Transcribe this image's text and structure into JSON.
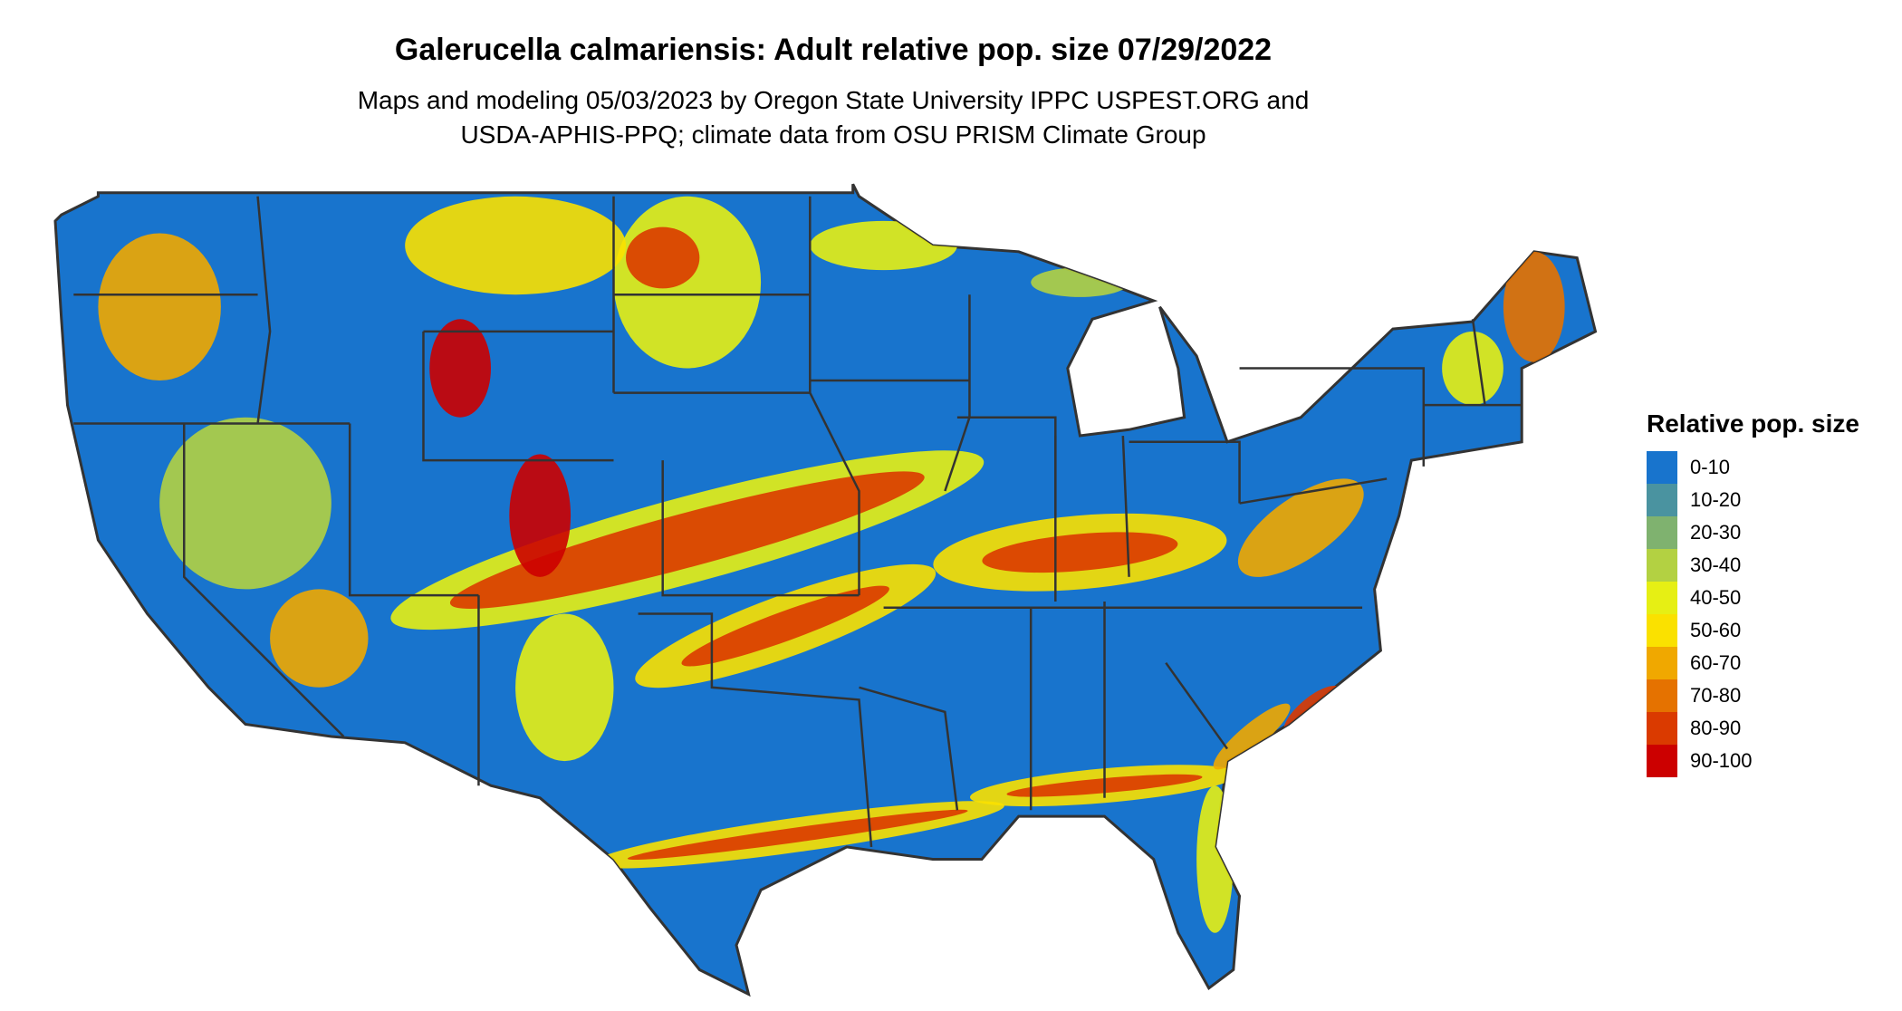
{
  "title": "Galerucella calmariensis: Adult relative pop. size 07/29/2022",
  "subtitle_line1": "Maps and modeling 05/03/2023 by Oregon State University IPPC USPEST.ORG and",
  "subtitle_line2": "USDA-APHIS-PPQ; climate data from OSU PRISM Climate Group",
  "legend": {
    "title": "Relative pop. size",
    "items": [
      {
        "label": "0-10",
        "color": "#1874CD"
      },
      {
        "label": "10-20",
        "color": "#4A93A0"
      },
      {
        "label": "20-30",
        "color": "#7FB26F"
      },
      {
        "label": "30-40",
        "color": "#B3D142"
      },
      {
        "label": "40-50",
        "color": "#E6EF14"
      },
      {
        "label": "50-60",
        "color": "#FAE100"
      },
      {
        "label": "60-70",
        "color": "#F0A800"
      },
      {
        "label": "70-80",
        "color": "#E57200"
      },
      {
        "label": "80-90",
        "color": "#DA3A00"
      },
      {
        "label": "90-100",
        "color": "#CC0000"
      }
    ]
  },
  "map": {
    "border_color": "#333333",
    "background_class": "0-10"
  }
}
